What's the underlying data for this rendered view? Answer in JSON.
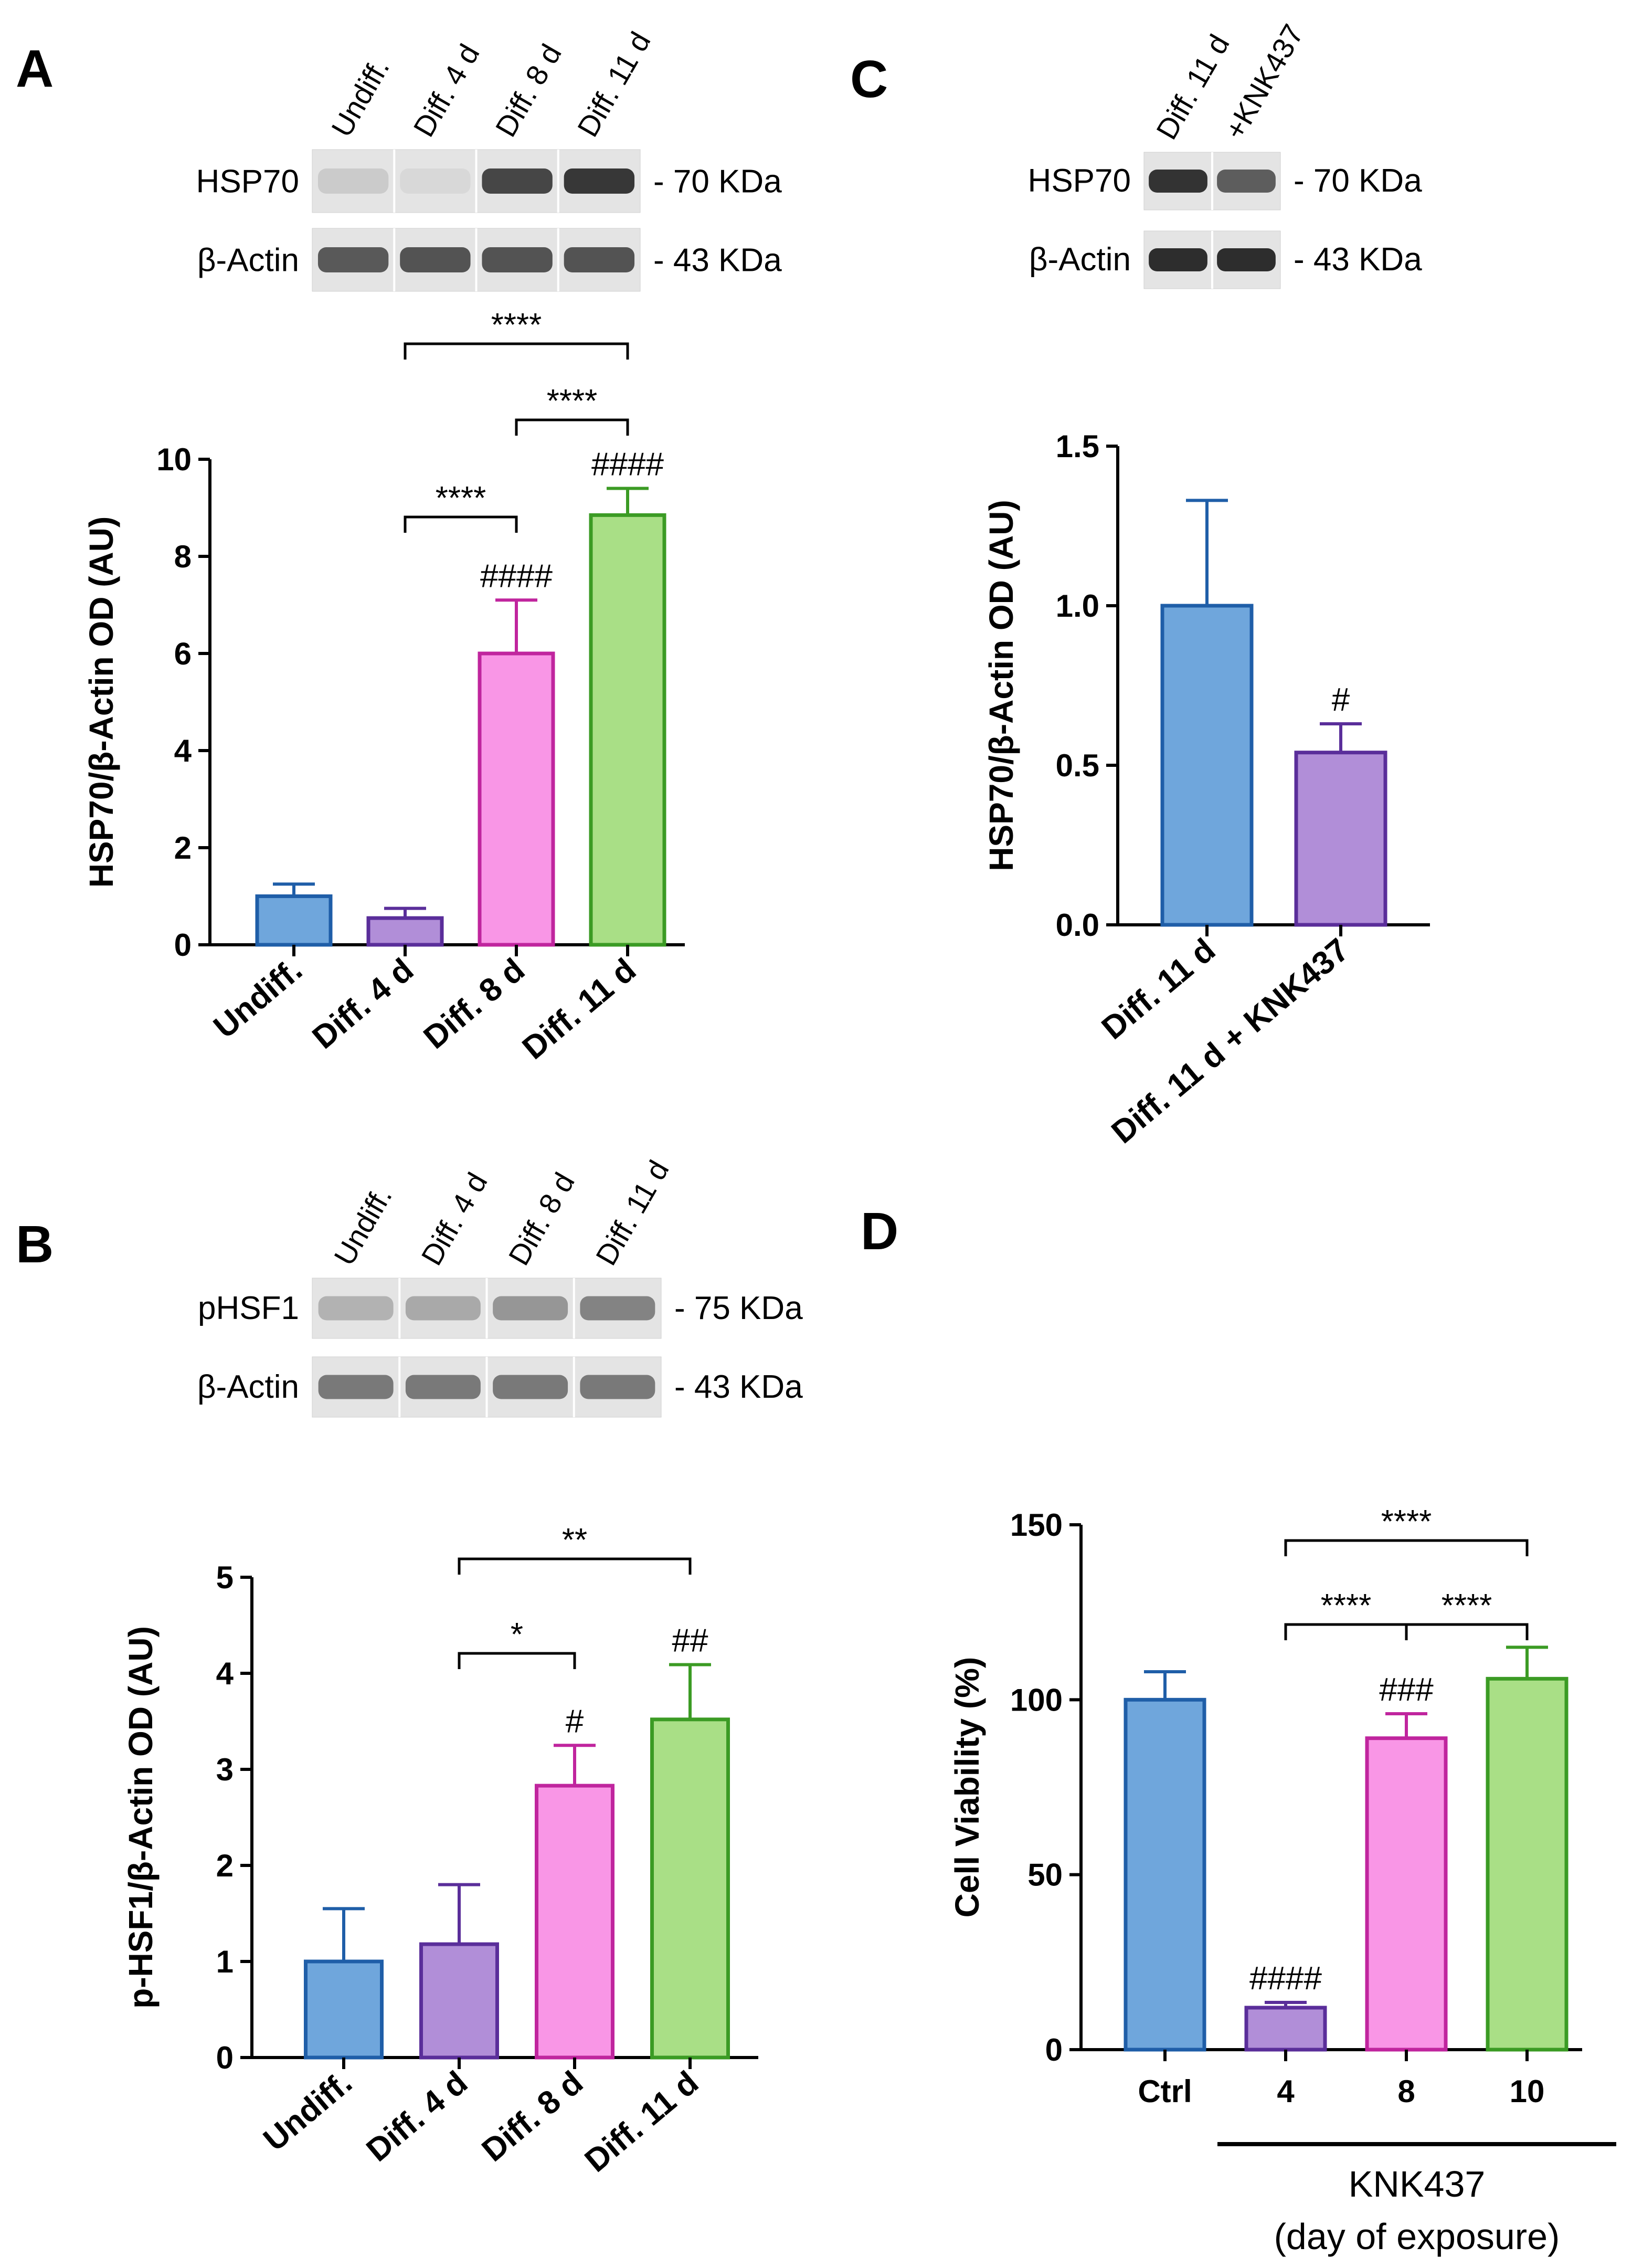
{
  "colors": {
    "undiff": "#6fa6dc",
    "diff4": "#b18ed8",
    "diff8": "#f996e6",
    "diff11": "#a9df86",
    "undiff_edge": "#1f5ea8",
    "diff4_edge": "#5a2e9a",
    "diff8_edge": "#c0259e",
    "diff11_edge": "#3b9b24"
  },
  "panels": [
    {
      "label": "A",
      "blot": {
        "lanes": [
          "Undiff.",
          "Diff. 4 d",
          "Diff. 8 d",
          "Diff. 11 d"
        ],
        "rows": [
          {
            "protein": "HSP70",
            "size": "- 70 KDa",
            "intensity": [
              0.12,
              0.05,
              0.82,
              0.9
            ]
          },
          {
            "protein": "β-Actin",
            "size": "- 43 KDa",
            "intensity": [
              0.72,
              0.75,
              0.75,
              0.75
            ]
          }
        ]
      },
      "chart_data": {
        "type": "bar",
        "categories": [
          "Undiff.",
          "Diff. 4 d",
          "Diff. 8 d",
          "Diff. 11 d"
        ],
        "values": [
          1.0,
          0.55,
          6.0,
          8.85
        ],
        "errors": [
          0.25,
          0.2,
          1.1,
          0.55
        ],
        "ylabel": "HSP70/β-Actin OD (AU)",
        "ylim": [
          0,
          10
        ],
        "yticks": [
          "0",
          "2",
          "4",
          "6",
          "8",
          "10"
        ],
        "bar_marks": [
          "",
          "",
          "####",
          "####"
        ],
        "brackets": [
          {
            "from": 1,
            "to": 3,
            "label": "****"
          },
          {
            "from": 2,
            "to": 3,
            "label": "****"
          },
          {
            "from": 1,
            "to": 2,
            "label": "****"
          }
        ]
      }
    },
    {
      "label": "B",
      "blot": {
        "lanes": [
          "Undiff.",
          "Diff. 4 d",
          "Diff. 8 d",
          "Diff. 11 d"
        ],
        "rows": [
          {
            "protein": "pHSF1",
            "size": "- 75 KDa",
            "intensity": [
              0.25,
              0.3,
              0.4,
              0.5
            ]
          },
          {
            "protein": "β-Actin",
            "size": "- 43 KDa",
            "intensity": [
              0.55,
              0.55,
              0.55,
              0.55
            ]
          }
        ]
      },
      "chart_data": {
        "type": "bar",
        "categories": [
          "Undiff.",
          "Diff. 4 d",
          "Diff. 8 d",
          "Diff. 11 d"
        ],
        "values": [
          1.0,
          1.18,
          2.83,
          3.52
        ],
        "errors": [
          0.55,
          0.62,
          0.42,
          0.57
        ],
        "ylabel": "p-HSF1/β-Actin OD (AU)",
        "ylim": [
          0,
          5
        ],
        "yticks": [
          "0",
          "1",
          "2",
          "3",
          "4",
          "5"
        ],
        "bar_marks": [
          "",
          "",
          "#",
          "##"
        ],
        "brackets": [
          {
            "from": 1,
            "to": 3,
            "label": "**"
          },
          {
            "from": 1,
            "to": 2,
            "label": "*"
          }
        ]
      }
    },
    {
      "label": "C",
      "blot": {
        "lanes": [
          "Diff. 11 d",
          "+KNK437"
        ],
        "rows": [
          {
            "protein": "HSP70",
            "size": "- 70 KDa",
            "intensity": [
              0.92,
              0.7
            ]
          },
          {
            "protein": "β-Actin",
            "size": "- 43 KDa",
            "intensity": [
              0.95,
              0.95
            ]
          }
        ]
      },
      "chart_data": {
        "type": "bar",
        "categories": [
          "Diff. 11 d",
          "Diff. 11 d + KNK437"
        ],
        "values": [
          1.0,
          0.54
        ],
        "errors": [
          0.33,
          0.09
        ],
        "ylabel": "HSP70/β-Actin OD (AU)",
        "ylim": [
          0,
          1.5
        ],
        "yticks": [
          "0.0",
          "0.5",
          "1.0",
          "1.5"
        ],
        "bar_marks": [
          "",
          "#"
        ],
        "brackets": []
      }
    },
    {
      "label": "D",
      "chart_data": {
        "type": "bar",
        "categories": [
          "Ctrl",
          "4",
          "8",
          "10"
        ],
        "values": [
          100,
          12,
          89,
          106
        ],
        "errors": [
          8,
          1.5,
          7,
          9
        ],
        "ylabel": "Cell Viability (%)",
        "ylim": [
          0,
          150
        ],
        "yticks": [
          "0",
          "50",
          "100",
          "150"
        ],
        "bar_marks": [
          "",
          "####",
          "###",
          ""
        ],
        "brackets": [
          {
            "from": 1,
            "to": 3,
            "label": "****"
          },
          {
            "from": 1,
            "to": 2,
            "label": "****"
          },
          {
            "from": 2,
            "to": 3,
            "label": "****"
          }
        ],
        "group_label": [
          "KNK437",
          "(day of exposure)"
        ]
      }
    }
  ]
}
